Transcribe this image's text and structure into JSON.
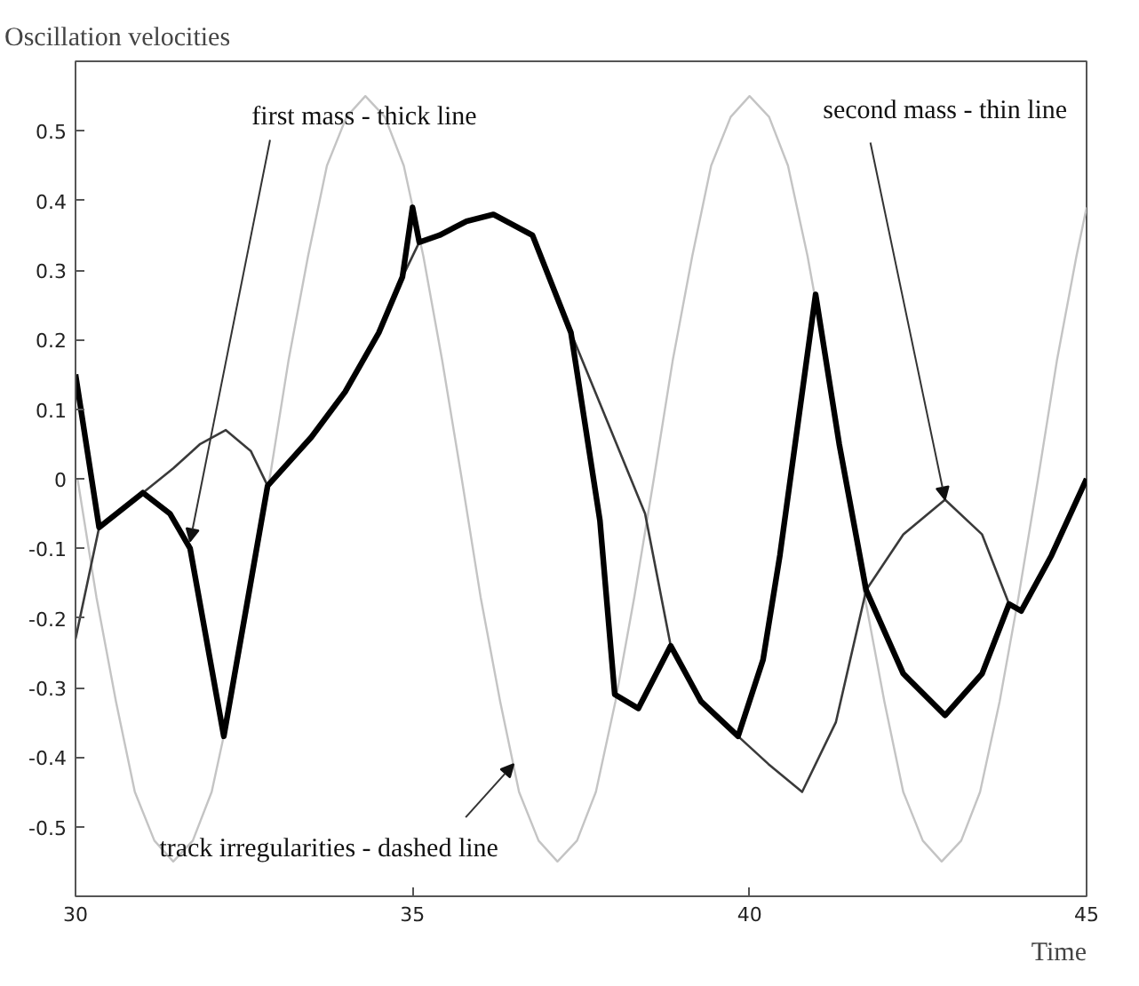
{
  "chart_data": {
    "type": "line",
    "title": "Oscillation velocities",
    "xlabel": "Time",
    "xlim": [
      30,
      45
    ],
    "ylim": [
      -0.6,
      0.6
    ],
    "xticks": [
      30,
      35,
      40,
      45
    ],
    "yticks": [
      -0.5,
      -0.4,
      -0.3,
      -0.2,
      -0.1,
      0,
      0.1,
      0.2,
      0.3,
      0.4,
      0.5
    ],
    "series": [
      {
        "color": "#c4c4c4",
        "x": [
          30.03,
          30.31,
          30.6,
          30.88,
          31.17,
          31.45,
          31.74,
          32.02,
          32.31,
          32.59,
          32.88,
          33.16,
          33.45,
          33.73,
          34.02,
          34.3,
          34.59,
          34.87,
          35.16,
          35.44,
          35.73,
          36.01,
          36.3,
          36.58,
          36.87,
          37.15,
          37.44,
          37.72,
          38.01,
          38.29,
          38.58,
          38.86,
          39.15,
          39.43,
          39.72,
          40.0,
          40.29,
          40.57,
          40.86,
          41.14,
          41.43,
          41.71,
          42.0,
          42.28,
          42.57,
          42.85,
          43.14,
          43.42,
          43.71,
          43.99,
          44.28,
          44.56,
          44.85,
          45.0
        ],
        "values": [
          0,
          -0.17,
          -0.32,
          -0.45,
          -0.52,
          -0.55,
          -0.52,
          -0.45,
          -0.32,
          -0.17,
          0,
          0.17,
          0.32,
          0.45,
          0.52,
          0.55,
          0.52,
          0.45,
          0.32,
          0.17,
          0,
          -0.17,
          -0.32,
          -0.45,
          -0.52,
          -0.55,
          -0.52,
          -0.45,
          -0.32,
          -0.17,
          0,
          0.17,
          0.32,
          0.45,
          0.52,
          0.55,
          0.52,
          0.45,
          0.32,
          0.17,
          0,
          -0.17,
          -0.32,
          -0.45,
          -0.52,
          -0.55,
          -0.52,
          -0.45,
          -0.32,
          -0.17,
          0,
          0.17,
          0.32,
          0.39
        ]
      },
      {
        "color": "#3a3a3a",
        "x": [
          30,
          30.35,
          31.0,
          31.45,
          31.85,
          32.23,
          32.6,
          32.85,
          33.5,
          34.0,
          34.5,
          34.85,
          35.1,
          35.4,
          35.8,
          36.2,
          36.78,
          37.35,
          38.45,
          38.83,
          39.28,
          39.83,
          40.28,
          40.78,
          41.28,
          41.73,
          42.28,
          42.9,
          43.45,
          43.85,
          44.03,
          44.48,
          45
        ],
        "values": [
          -0.23,
          -0.07,
          -0.02,
          0.015,
          0.05,
          0.07,
          0.04,
          -0.01,
          0.06,
          0.125,
          0.21,
          0.29,
          0.34,
          0.35,
          0.37,
          0.38,
          0.35,
          0.21,
          -0.05,
          -0.24,
          -0.32,
          -0.37,
          -0.41,
          -0.45,
          -0.35,
          -0.16,
          -0.08,
          -0.03,
          -0.08,
          -0.18,
          -0.19,
          -0.11,
          0.0
        ]
      },
      {
        "color": "#000000",
        "x": [
          30,
          30.35,
          31.0,
          31.4,
          31.7,
          32.2,
          32.85,
          33.5,
          34.0,
          34.5,
          34.85,
          35.0,
          35.1,
          35.4,
          35.8,
          36.2,
          36.78,
          37.35,
          37.78,
          38.0,
          38.35,
          38.83,
          39.28,
          39.83,
          40.2,
          40.45,
          40.98,
          41.33,
          41.73,
          42.28,
          42.9,
          43.45,
          43.85,
          44.03,
          44.48,
          45
        ],
        "values": [
          0.15,
          -0.07,
          -0.02,
          -0.05,
          -0.1,
          -0.37,
          -0.01,
          0.06,
          0.125,
          0.21,
          0.29,
          0.39,
          0.34,
          0.35,
          0.37,
          0.38,
          0.35,
          0.21,
          -0.06,
          -0.31,
          -0.33,
          -0.24,
          -0.32,
          -0.37,
          -0.26,
          -0.11,
          0.265,
          0.05,
          -0.16,
          -0.28,
          -0.34,
          -0.28,
          -0.18,
          -0.19,
          -0.11,
          0.0
        ]
      }
    ],
    "annotations": [
      {
        "text": "first mass - thick line",
        "x": 31.7,
        "y": -0.09
      },
      {
        "text": "second mass - thin line",
        "x": 42.9,
        "y": -0.03
      },
      {
        "text": "track irregularities - dashed line",
        "x": 36.5,
        "y": -0.41
      }
    ]
  }
}
